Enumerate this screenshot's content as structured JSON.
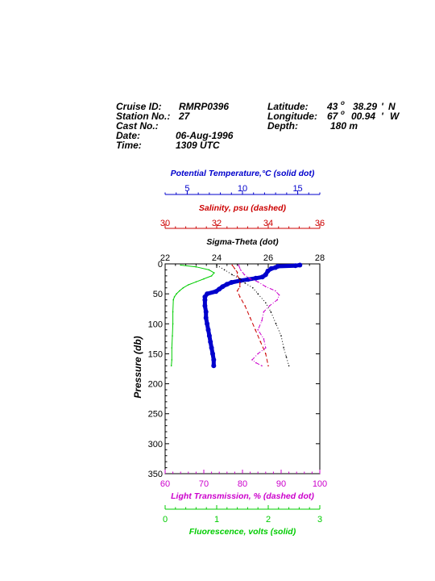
{
  "header": {
    "cruise_id_label": "Cruise ID:",
    "cruise_id": "RMRP0396",
    "station_label": "Station No.:",
    "station": "27",
    "cast_label": "Cast No.:",
    "cast": "",
    "date_label": "Date:",
    "date": "06-Aug-1996",
    "time_label": "Time:",
    "time": "1309 UTC",
    "latitude_label": "Latitude:",
    "lat_deg": "43",
    "lat_min": "38.29",
    "lat_hemi": "N",
    "longitude_label": "Longitude:",
    "lon_deg": "67",
    "lon_min": "00.94",
    "lon_hemi": "W",
    "depth_label": "Depth:",
    "depth": "180 m"
  },
  "chart_data": {
    "type": "line",
    "y_axis": {
      "label": "Pressure (db)",
      "range": [
        0,
        350
      ],
      "ticks": [
        0,
        50,
        100,
        150,
        200,
        250,
        300,
        350
      ],
      "reversed": true
    },
    "axes": [
      {
        "key": "temperature",
        "label": "Potential Temperature,°C (solid dot)",
        "range": [
          3,
          17
        ],
        "ticks": [
          5,
          10,
          15
        ],
        "color": "#0000cc"
      },
      {
        "key": "salinity",
        "label": "Salinity, psu  (dashed)",
        "range": [
          30,
          36
        ],
        "ticks": [
          30,
          32,
          34,
          36
        ],
        "color": "#cc0000"
      },
      {
        "key": "sigma",
        "label": "Sigma-Theta (dot)",
        "range": [
          22,
          28
        ],
        "ticks": [
          22,
          24,
          26,
          28
        ],
        "color": "#000000"
      },
      {
        "key": "transmission",
        "label": "Light Transmission, % (dashed dot)",
        "range": [
          60,
          100
        ],
        "ticks": [
          60,
          70,
          80,
          90,
          100
        ],
        "color": "#cc00cc"
      },
      {
        "key": "fluorescence",
        "label": "Fluorescence, volts (solid)",
        "range": [
          0,
          3
        ],
        "ticks": [
          0,
          1,
          2,
          3
        ],
        "color": "#00cc00"
      }
    ],
    "series": [
      {
        "name": "Potential Temperature",
        "key": "temperature",
        "style": "solid-dot",
        "color": "#0000cc",
        "points": [
          [
            2,
            15.2
          ],
          [
            3,
            14.8
          ],
          [
            4,
            13.2
          ],
          [
            6,
            13.0
          ],
          [
            8,
            12.6
          ],
          [
            12,
            12.3
          ],
          [
            18,
            12.1
          ],
          [
            22,
            11.8
          ],
          [
            24,
            11.2
          ],
          [
            26,
            10.5
          ],
          [
            28,
            9.8
          ],
          [
            31,
            9.0
          ],
          [
            34,
            8.6
          ],
          [
            38,
            8.2
          ],
          [
            42,
            7.9
          ],
          [
            46,
            7.6
          ],
          [
            50,
            6.8
          ],
          [
            55,
            6.6
          ],
          [
            60,
            6.6
          ],
          [
            70,
            6.6
          ],
          [
            80,
            6.7
          ],
          [
            90,
            6.7
          ],
          [
            100,
            6.8
          ],
          [
            110,
            6.9
          ],
          [
            120,
            7.0
          ],
          [
            130,
            7.1
          ],
          [
            140,
            7.2
          ],
          [
            150,
            7.3
          ],
          [
            160,
            7.4
          ],
          [
            170,
            7.4
          ]
        ]
      },
      {
        "name": "Salinity",
        "key": "salinity",
        "style": "dashed",
        "color": "#cc0000",
        "points": [
          [
            2,
            32.6
          ],
          [
            8,
            32.7
          ],
          [
            14,
            32.8
          ],
          [
            20,
            32.8
          ],
          [
            26,
            32.9
          ],
          [
            32,
            32.9
          ],
          [
            38,
            32.9
          ],
          [
            45,
            32.8
          ],
          [
            55,
            32.9
          ],
          [
            70,
            33.1
          ],
          [
            90,
            33.3
          ],
          [
            110,
            33.5
          ],
          [
            130,
            33.7
          ],
          [
            150,
            33.9
          ],
          [
            170,
            34.0
          ]
        ]
      },
      {
        "name": "Sigma-Theta",
        "key": "sigma",
        "style": "dot",
        "color": "#000000",
        "points": [
          [
            2,
            24.0
          ],
          [
            10,
            24.3
          ],
          [
            18,
            24.6
          ],
          [
            25,
            24.9
          ],
          [
            32,
            25.1
          ],
          [
            40,
            25.4
          ],
          [
            50,
            25.6
          ],
          [
            65,
            25.9
          ],
          [
            80,
            26.1
          ],
          [
            100,
            26.3
          ],
          [
            120,
            26.5
          ],
          [
            140,
            26.6
          ],
          [
            155,
            26.7
          ],
          [
            170,
            26.8
          ]
        ]
      },
      {
        "name": "Light Transmission",
        "key": "transmission",
        "style": "dashed-dot",
        "color": "#cc00cc",
        "points": [
          [
            2,
            79.0
          ],
          [
            10,
            79.5
          ],
          [
            18,
            80.5
          ],
          [
            25,
            82.0
          ],
          [
            30,
            84.0
          ],
          [
            38,
            86.0
          ],
          [
            45,
            88.5
          ],
          [
            52,
            89.5
          ],
          [
            60,
            89.0
          ],
          [
            70,
            87.0
          ],
          [
            80,
            85.5
          ],
          [
            95,
            85.0
          ],
          [
            110,
            84.0
          ],
          [
            125,
            85.5
          ],
          [
            140,
            86.0
          ],
          [
            150,
            84.0
          ],
          [
            160,
            82.5
          ],
          [
            165,
            83.5
          ],
          [
            170,
            85.0
          ]
        ]
      },
      {
        "name": "Fluorescence",
        "key": "fluorescence",
        "style": "solid",
        "color": "#00cc00",
        "points": [
          [
            2,
            0.3
          ],
          [
            5,
            0.6
          ],
          [
            10,
            0.85
          ],
          [
            15,
            0.95
          ],
          [
            20,
            0.9
          ],
          [
            25,
            0.75
          ],
          [
            30,
            0.6
          ],
          [
            35,
            0.45
          ],
          [
            40,
            0.35
          ],
          [
            45,
            0.28
          ],
          [
            50,
            0.22
          ],
          [
            55,
            0.18
          ],
          [
            60,
            0.16
          ],
          [
            80,
            0.15
          ],
          [
            100,
            0.15
          ],
          [
            120,
            0.14
          ],
          [
            140,
            0.13
          ],
          [
            160,
            0.13
          ],
          [
            170,
            0.12
          ]
        ]
      }
    ]
  }
}
